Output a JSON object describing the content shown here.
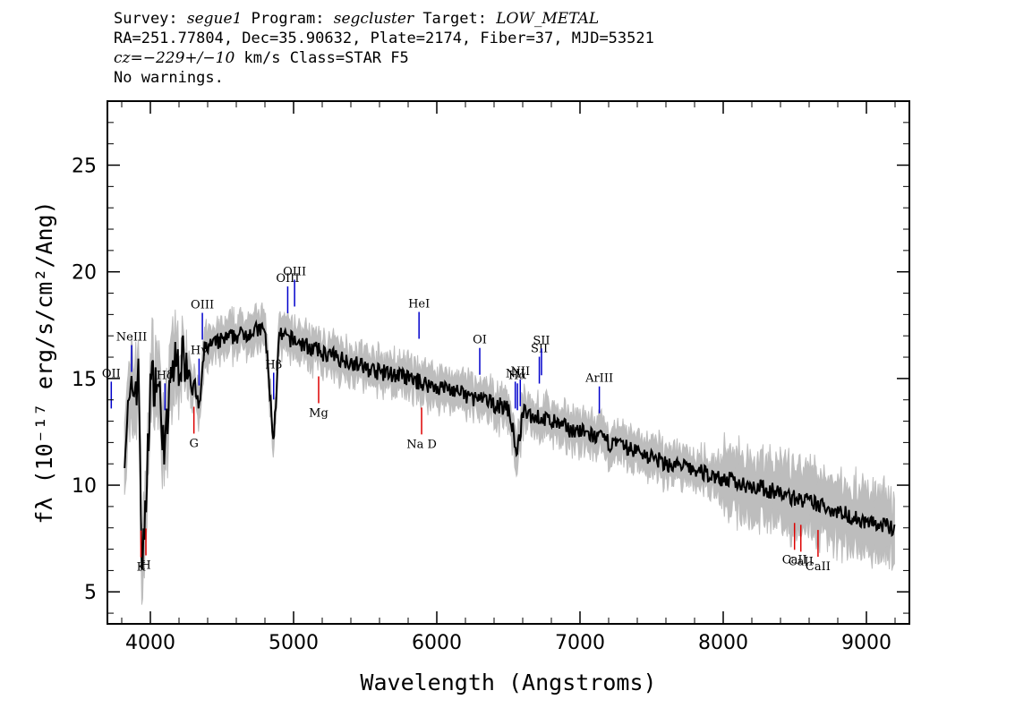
{
  "header": {
    "line1": {
      "survey_label": "Survey: ",
      "survey": "segue1",
      "program_label": " Program: ",
      "program": "segcluster",
      "target_label": " Target: ",
      "target": "LOW_METAL"
    },
    "line2": "RA=251.77804, Dec=35.90632, Plate=2174, Fiber=37, MJD=53521",
    "line3": {
      "cz_label": "cz",
      "cz_value": "=−229+/−10",
      "rest": " km/s Class=STAR F5"
    },
    "line4": "No warnings."
  },
  "chart_data": {
    "type": "line",
    "xlabel": "Wavelength (Angstroms)",
    "ylabel": "fλ (10⁻¹⁷ erg/s/cm²/Ang)",
    "xlim": [
      3700,
      9300
    ],
    "ylim": [
      3.5,
      28
    ],
    "grid": false,
    "x_ticks": [
      4000,
      5000,
      6000,
      7000,
      8000,
      9000
    ],
    "y_ticks": [
      5,
      10,
      15,
      20,
      25
    ],
    "x_tick_labels": [
      "4000",
      "5000",
      "6000",
      "7000",
      "8000",
      "9000"
    ],
    "y_tick_labels": [
      "5",
      "10",
      "15",
      "20",
      "25"
    ],
    "colors": {
      "flux": "#000000",
      "error_band": "#bdbdbd",
      "emission_line": "#0000cc",
      "absorption_line": "#dd0000"
    },
    "series": [
      {
        "kind": "flux",
        "x": [
          3820,
          3850,
          3880,
          3920,
          3940,
          3960,
          4000,
          4050,
          4102,
          4150,
          4200,
          4250,
          4300,
          4340,
          4380,
          4450,
          4500,
          4600,
          4700,
          4800,
          4861,
          4900,
          5000,
          5100,
          5200,
          5300,
          5400,
          5500,
          5600,
          5700,
          5800,
          5900,
          6000,
          6100,
          6200,
          6300,
          6400,
          6500,
          6563,
          6600,
          6700,
          6800,
          6900,
          7000,
          7100,
          7200,
          7300,
          7400,
          7500,
          7600,
          7700,
          7800,
          7900,
          8000,
          8100,
          8200,
          8300,
          8400,
          8500,
          8600,
          8700,
          8800,
          8900,
          9000,
          9100,
          9200
        ],
        "y": [
          12.0,
          13.5,
          14.5,
          15.0,
          6.5,
          7.5,
          14.8,
          15.0,
          11.5,
          15.5,
          15.8,
          16.0,
          15.0,
          13.5,
          16.5,
          16.6,
          16.8,
          17.0,
          17.2,
          17.3,
          12.0,
          17.0,
          16.8,
          16.5,
          16.2,
          16.0,
          15.8,
          15.5,
          15.3,
          15.2,
          15.0,
          14.8,
          14.6,
          14.5,
          14.2,
          14.0,
          13.8,
          13.6,
          11.5,
          13.4,
          13.2,
          13.0,
          12.7,
          12.5,
          12.3,
          12.0,
          11.8,
          11.6,
          11.3,
          11.0,
          10.9,
          10.7,
          10.5,
          10.3,
          10.1,
          10.0,
          9.8,
          9.6,
          9.4,
          9.2,
          9.0,
          8.8,
          8.5,
          8.3,
          8.1,
          8.0
        ]
      }
    ],
    "emission_lines": [
      {
        "label": "NeIII",
        "wavelength": 3869
      },
      {
        "label": "OII",
        "wavelength": 3727
      },
      {
        "label": "Hδ",
        "wavelength": 4102
      },
      {
        "label": "Hγ",
        "wavelength": 4340
      },
      {
        "label": "OIII",
        "wavelength": 4363
      },
      {
        "label": "Hβ",
        "wavelength": 4861
      },
      {
        "label": "OIII",
        "wavelength": 4959
      },
      {
        "label": "OIII",
        "wavelength": 5007
      },
      {
        "label": "HeI",
        "wavelength": 5876
      },
      {
        "label": "OI",
        "wavelength": 6300
      },
      {
        "label": "NII",
        "wavelength": 6548
      },
      {
        "label": "Hα",
        "wavelength": 6563
      },
      {
        "label": "NII",
        "wavelength": 6583
      },
      {
        "label": "SII",
        "wavelength": 6716
      },
      {
        "label": "SII",
        "wavelength": 6731
      },
      {
        "label": "ArIII",
        "wavelength": 7135
      }
    ],
    "absorption_lines": [
      {
        "label": "K",
        "wavelength": 3934
      },
      {
        "label": "H",
        "wavelength": 3969
      },
      {
        "label": "G",
        "wavelength": 4304
      },
      {
        "label": "Mg",
        "wavelength": 5175
      },
      {
        "label": "Na D",
        "wavelength": 5894
      },
      {
        "label": "CaII",
        "wavelength": 8498
      },
      {
        "label": "CaII",
        "wavelength": 8542
      },
      {
        "label": "CaII",
        "wavelength": 8662
      }
    ]
  }
}
